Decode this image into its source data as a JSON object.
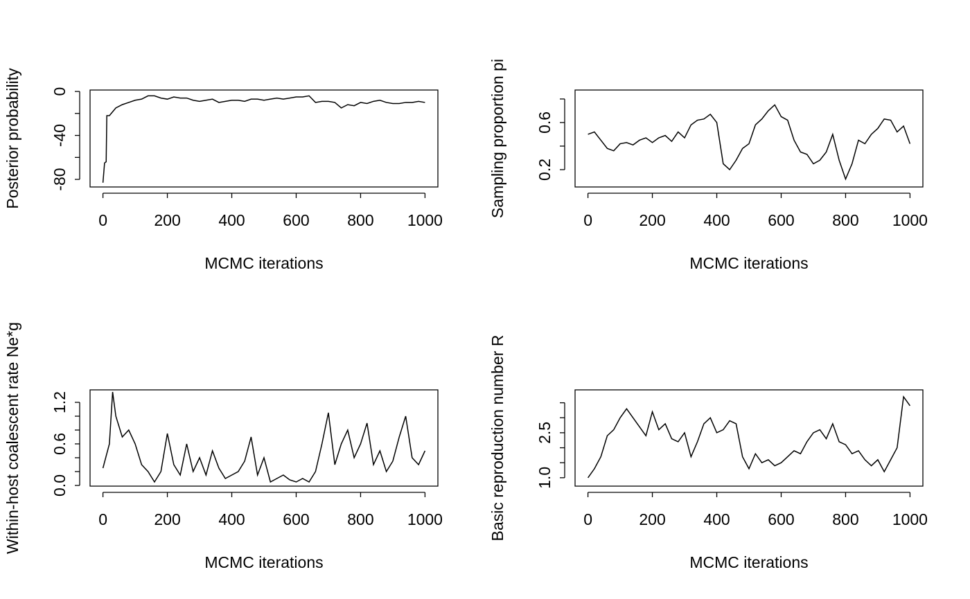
{
  "chart_data": [
    {
      "type": "line",
      "ylabel": "Posterior probability",
      "xlabel": "MCMC iterations",
      "color": "#000000",
      "x": [
        0,
        5,
        10,
        12,
        20,
        40,
        60,
        80,
        100,
        120,
        140,
        160,
        180,
        200,
        220,
        240,
        260,
        280,
        300,
        320,
        340,
        360,
        380,
        400,
        420,
        440,
        460,
        480,
        500,
        520,
        540,
        560,
        580,
        600,
        620,
        640,
        660,
        680,
        700,
        720,
        740,
        760,
        780,
        800,
        820,
        840,
        860,
        880,
        900,
        920,
        940,
        960,
        980,
        1000
      ],
      "values": [
        -83,
        -65,
        -64,
        -22,
        -22,
        -15,
        -12,
        -10,
        -8,
        -7,
        -4,
        -4,
        -6,
        -7,
        -5,
        -6,
        -6,
        -8,
        -9,
        -8,
        -7,
        -10,
        -9,
        -8,
        -8,
        -9,
        -7,
        -7,
        -8,
        -7,
        -6,
        -7,
        -6,
        -5,
        -5,
        -4,
        -10,
        -9,
        -9,
        -10,
        -15,
        -12,
        -13,
        -10,
        -11,
        -9,
        -8,
        -10,
        -11,
        -11,
        -10,
        -10,
        -9,
        -10
      ],
      "xlim": [
        -40,
        1040
      ],
      "ylim": [
        -86.9,
        1.3
      ],
      "xticks": [
        0,
        200,
        400,
        600,
        800,
        1000
      ],
      "yticks": [
        -80,
        {
          "value": -60,
          "label": null
        },
        -40,
        {
          "value": -20,
          "label": null
        },
        0
      ]
    },
    {
      "type": "line",
      "ylabel": "Sampling proportion pi",
      "xlabel": "MCMC iterations",
      "color": "#000000",
      "x": [
        0,
        20,
        40,
        60,
        80,
        100,
        120,
        140,
        160,
        180,
        200,
        220,
        240,
        260,
        280,
        300,
        320,
        340,
        360,
        380,
        400,
        420,
        440,
        460,
        480,
        500,
        520,
        540,
        560,
        580,
        600,
        620,
        640,
        660,
        680,
        700,
        720,
        740,
        760,
        780,
        800,
        820,
        840,
        860,
        880,
        900,
        920,
        940,
        960,
        980,
        1000
      ],
      "values": [
        0.5,
        0.52,
        0.45,
        0.38,
        0.36,
        0.42,
        0.43,
        0.41,
        0.45,
        0.47,
        0.43,
        0.47,
        0.49,
        0.44,
        0.52,
        0.47,
        0.58,
        0.62,
        0.63,
        0.67,
        0.6,
        0.25,
        0.2,
        0.28,
        0.38,
        0.42,
        0.58,
        0.63,
        0.7,
        0.75,
        0.65,
        0.62,
        0.45,
        0.35,
        0.33,
        0.25,
        0.28,
        0.35,
        0.5,
        0.28,
        0.12,
        0.25,
        0.45,
        0.42,
        0.5,
        0.55,
        0.63,
        0.62,
        0.52,
        0.57,
        0.42
      ],
      "xlim": [
        -40,
        1040
      ],
      "ylim": [
        0.053,
        0.876
      ],
      "xticks": [
        0,
        200,
        400,
        600,
        800,
        1000
      ],
      "yticks": [
        0.2,
        {
          "value": 0.4,
          "label": null
        },
        0.6,
        {
          "value": 0.8,
          "label": null
        }
      ]
    },
    {
      "type": "line",
      "ylabel": "Within-host coalescent rate Ne*g",
      "xlabel": "MCMC iterations",
      "color": "#000000",
      "x": [
        0,
        20,
        30,
        40,
        60,
        80,
        100,
        120,
        140,
        160,
        180,
        200,
        220,
        240,
        260,
        280,
        300,
        320,
        340,
        360,
        380,
        400,
        420,
        440,
        460,
        480,
        500,
        520,
        540,
        560,
        580,
        600,
        620,
        640,
        660,
        680,
        700,
        720,
        740,
        760,
        780,
        800,
        820,
        840,
        860,
        880,
        900,
        920,
        940,
        960,
        980,
        1000
      ],
      "values": [
        0.25,
        0.6,
        1.35,
        1.0,
        0.7,
        0.8,
        0.6,
        0.3,
        0.2,
        0.05,
        0.2,
        0.75,
        0.3,
        0.15,
        0.6,
        0.2,
        0.4,
        0.15,
        0.5,
        0.25,
        0.1,
        0.15,
        0.2,
        0.35,
        0.7,
        0.15,
        0.4,
        0.05,
        0.1,
        0.15,
        0.08,
        0.05,
        0.1,
        0.05,
        0.2,
        0.6,
        1.05,
        0.3,
        0.6,
        0.8,
        0.4,
        0.6,
        0.9,
        0.3,
        0.5,
        0.2,
        0.35,
        0.7,
        1.0,
        0.4,
        0.3,
        0.5
      ],
      "xlim": [
        -40,
        1040
      ],
      "ylim": [
        -0.01,
        1.38
      ],
      "xticks": [
        0,
        200,
        400,
        600,
        800,
        1000
      ],
      "yticks": [
        {
          "value": 0,
          "label": "0.0"
        },
        {
          "value": 0.2,
          "label": null
        },
        {
          "value": 0.4,
          "label": null
        },
        0.6,
        {
          "value": 0.8,
          "label": null
        },
        {
          "value": 1.0,
          "label": null
        },
        1.2
      ]
    },
    {
      "type": "line",
      "ylabel": "Basic reproduction number R",
      "xlabel": "MCMC iterations",
      "color": "#000000",
      "x": [
        0,
        20,
        40,
        60,
        80,
        100,
        120,
        140,
        160,
        180,
        200,
        220,
        240,
        260,
        280,
        300,
        320,
        340,
        360,
        380,
        400,
        420,
        440,
        460,
        480,
        500,
        520,
        540,
        560,
        580,
        600,
        620,
        640,
        660,
        680,
        700,
        720,
        740,
        760,
        780,
        800,
        820,
        840,
        860,
        880,
        900,
        920,
        940,
        960,
        980,
        1000
      ],
      "values": [
        1.0,
        1.3,
        1.7,
        2.4,
        2.6,
        3.0,
        3.3,
        3.0,
        2.7,
        2.4,
        3.2,
        2.6,
        2.8,
        2.3,
        2.2,
        2.5,
        1.7,
        2.2,
        2.8,
        3.0,
        2.5,
        2.6,
        2.9,
        2.8,
        1.7,
        1.3,
        1.8,
        1.5,
        1.6,
        1.4,
        1.5,
        1.7,
        1.9,
        1.8,
        2.2,
        2.5,
        2.6,
        2.3,
        2.8,
        2.2,
        2.1,
        1.8,
        1.9,
        1.6,
        1.4,
        1.6,
        1.2,
        1.6,
        2.0,
        3.7,
        3.4
      ],
      "xlim": [
        -40,
        1040
      ],
      "ylim": [
        0.72,
        3.93
      ],
      "xticks": [
        0,
        200,
        400,
        600,
        800,
        1000
      ],
      "yticks": [
        {
          "value": 1,
          "label": "1.0"
        },
        {
          "value": 1.5,
          "label": null
        },
        {
          "value": 2,
          "label": null
        },
        2.5,
        {
          "value": 3,
          "label": null
        },
        {
          "value": 3.5,
          "label": null
        }
      ]
    }
  ]
}
